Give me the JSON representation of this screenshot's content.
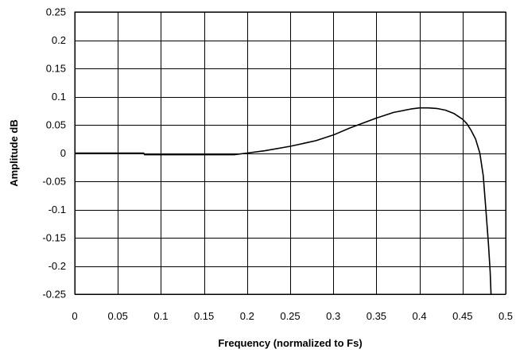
{
  "chart_data": {
    "type": "line",
    "title": "",
    "xlabel": "Frequency (normalized to Fs)",
    "ylabel": "Amplitude dB",
    "xlim": [
      0,
      0.5
    ],
    "ylim": [
      -0.25,
      0.25
    ],
    "x_ticks": [
      0,
      0.05,
      0.1,
      0.15,
      0.2,
      0.25,
      0.3,
      0.35,
      0.4,
      0.45,
      0.5
    ],
    "x_tick_labels": [
      "0",
      "0.05",
      "0.1",
      "0.15",
      "0.2",
      "0.25",
      "0.3",
      "0.35",
      "0.4",
      "0.45",
      "0.5"
    ],
    "y_ticks": [
      0.25,
      0.2,
      0.15,
      0.1,
      0.05,
      0,
      -0.05,
      -0.1,
      -0.15,
      -0.2,
      -0.25
    ],
    "y_tick_labels": [
      "0.25",
      "0.2",
      "0.15",
      "0.1",
      "0.05",
      "0",
      "-0.05",
      "-0.1",
      "-0.15",
      "-0.2",
      "-0.25"
    ],
    "grid": true,
    "legend": "none",
    "line_color": "#000000",
    "series": [
      {
        "x": [
          0,
          0.05,
          0.08,
          0.081,
          0.1,
          0.15,
          0.185,
          0.2,
          0.22,
          0.25,
          0.28,
          0.3,
          0.32,
          0.35,
          0.37,
          0.39,
          0.4,
          0.41,
          0.42,
          0.43,
          0.44,
          0.45,
          0.455,
          0.46,
          0.465,
          0.47,
          0.474,
          0.477,
          0.48,
          0.482,
          0.483
        ],
        "y": [
          0,
          0,
          0,
          -0.003,
          -0.003,
          -0.003,
          -0.003,
          0.0,
          0.004,
          0.012,
          0.022,
          0.032,
          0.045,
          0.062,
          0.072,
          0.078,
          0.08,
          0.08,
          0.079,
          0.076,
          0.07,
          0.06,
          0.052,
          0.04,
          0.025,
          0.0,
          -0.04,
          -0.1,
          -0.16,
          -0.21,
          -0.25
        ]
      }
    ]
  }
}
